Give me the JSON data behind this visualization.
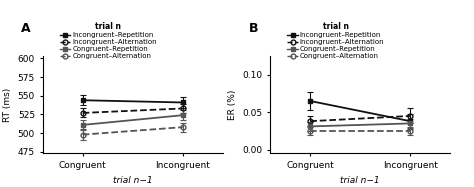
{
  "panel_A": {
    "title": "A",
    "ylabel": "RT (ms)",
    "xlabel": "trial n−1",
    "legend_title": "trial n",
    "yticks": [
      475,
      500,
      525,
      550,
      575,
      600
    ],
    "ylim": [
      473,
      603
    ],
    "xtick_labels": [
      "Congruent",
      "Incongruent"
    ],
    "series": [
      {
        "label": "Incongruent–Repetition",
        "x": [
          0,
          1
        ],
        "y": [
          544,
          541
        ],
        "yerr": [
          7,
          7
        ],
        "color": "#111111",
        "linestyle": "solid",
        "marker": "s",
        "fillstyle": "full",
        "linewidth": 1.3
      },
      {
        "label": "Incongruent–Alternation",
        "x": [
          0,
          1
        ],
        "y": [
          527,
          533
        ],
        "yerr": [
          6,
          6
        ],
        "color": "#111111",
        "linestyle": "dashed",
        "marker": "o",
        "fillstyle": "none",
        "linewidth": 1.3
      },
      {
        "label": "Congruent–Repetition",
        "x": [
          0,
          1
        ],
        "y": [
          511,
          524
        ],
        "yerr": [
          7,
          7
        ],
        "color": "#555555",
        "linestyle": "solid",
        "marker": "s",
        "fillstyle": "full",
        "linewidth": 1.3
      },
      {
        "label": "Congruent–Alternation",
        "x": [
          0,
          1
        ],
        "y": [
          498,
          508
        ],
        "yerr": [
          7,
          6
        ],
        "color": "#555555",
        "linestyle": "dashed",
        "marker": "o",
        "fillstyle": "none",
        "linewidth": 1.3
      }
    ]
  },
  "panel_B": {
    "title": "B",
    "ylabel": "ER (%)",
    "xlabel": "trial n−1",
    "legend_title": "trial n",
    "yticks": [
      0.0,
      0.05,
      0.1
    ],
    "ylim": [
      -0.005,
      0.125
    ],
    "xtick_labels": [
      "Congruent",
      "Incongruent"
    ],
    "series": [
      {
        "label": "Incongruent–Repetition",
        "x": [
          0,
          1
        ],
        "y": [
          0.065,
          0.038
        ],
        "yerr": [
          0.012,
          0.01
        ],
        "color": "#111111",
        "linestyle": "solid",
        "marker": "s",
        "fillstyle": "full",
        "linewidth": 1.3
      },
      {
        "label": "Incongruent–Alternation",
        "x": [
          0,
          1
        ],
        "y": [
          0.038,
          0.045
        ],
        "yerr": [
          0.007,
          0.01
        ],
        "color": "#111111",
        "linestyle": "dashed",
        "marker": "o",
        "fillstyle": "none",
        "linewidth": 1.3
      },
      {
        "label": "Congruent–Repetition",
        "x": [
          0,
          1
        ],
        "y": [
          0.031,
          0.035
        ],
        "yerr": [
          0.006,
          0.006
        ],
        "color": "#555555",
        "linestyle": "solid",
        "marker": "s",
        "fillstyle": "full",
        "linewidth": 1.3
      },
      {
        "label": "Congruent–Alternation",
        "x": [
          0,
          1
        ],
        "y": [
          0.025,
          0.025
        ],
        "yerr": [
          0.005,
          0.005
        ],
        "color": "#555555",
        "linestyle": "dashed",
        "marker": "o",
        "fillstyle": "none",
        "linewidth": 1.3
      }
    ]
  },
  "legend_entries": [
    {
      "label": "Incongruent–Repetition",
      "color": "#111111",
      "linestyle": "solid",
      "marker": "s",
      "fillstyle": "full"
    },
    {
      "label": "Incongruent–Alternation",
      "color": "#111111",
      "linestyle": "dashed",
      "marker": "o",
      "fillstyle": "none"
    },
    {
      "label": "Congruent–Repetition",
      "color": "#555555",
      "linestyle": "solid",
      "marker": "s",
      "fillstyle": "full"
    },
    {
      "label": "Congruent–Alternation",
      "color": "#555555",
      "linestyle": "dashed",
      "marker": "o",
      "fillstyle": "none"
    }
  ],
  "background_color": "#ffffff",
  "fontsize": 6.5
}
